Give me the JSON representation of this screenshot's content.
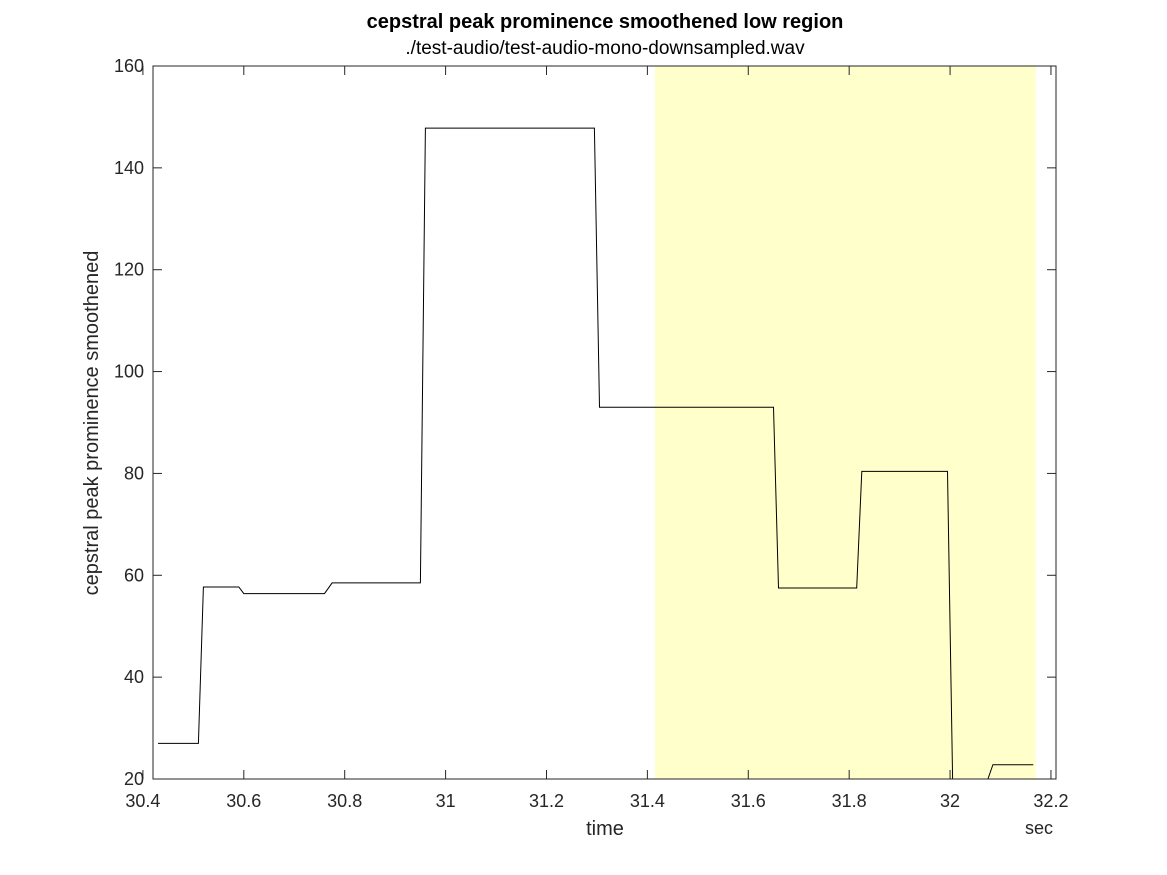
{
  "chart_data": {
    "type": "line",
    "title": "cepstral peak prominence smoothened low region",
    "subtitle": "./test-audio/test-audio-mono-downsampled.wav",
    "xlabel": "time",
    "ylabel": "cepstral peak prominence smoothened",
    "x_unit": "sec",
    "xlim": [
      30.42,
      32.21
    ],
    "ylim": [
      20,
      160
    ],
    "xticks": [
      30.4,
      30.6,
      30.8,
      31,
      31.2,
      31.4,
      31.6,
      31.8,
      32,
      32.2
    ],
    "yticks": [
      20,
      40,
      60,
      80,
      100,
      120,
      140,
      160
    ],
    "highlight_region": {
      "x_start": 31.415,
      "x_end": 32.17,
      "color": "#ffffcc"
    },
    "line_color": "#000000",
    "grid": false,
    "series": [
      {
        "x": [
          30.43,
          30.51,
          30.52,
          30.59,
          30.6,
          30.76,
          30.775,
          30.95,
          30.96,
          31.295,
          31.305,
          31.65,
          31.66,
          31.815,
          31.825,
          31.995,
          32.005,
          32.075,
          32.085,
          32.165
        ],
        "y": [
          27,
          27,
          57.7,
          57.7,
          56.4,
          56.4,
          58.5,
          58.5,
          147.8,
          147.8,
          93,
          93,
          57.5,
          57.5,
          80.4,
          80.4,
          20,
          20,
          22.8,
          22.8
        ]
      }
    ]
  }
}
